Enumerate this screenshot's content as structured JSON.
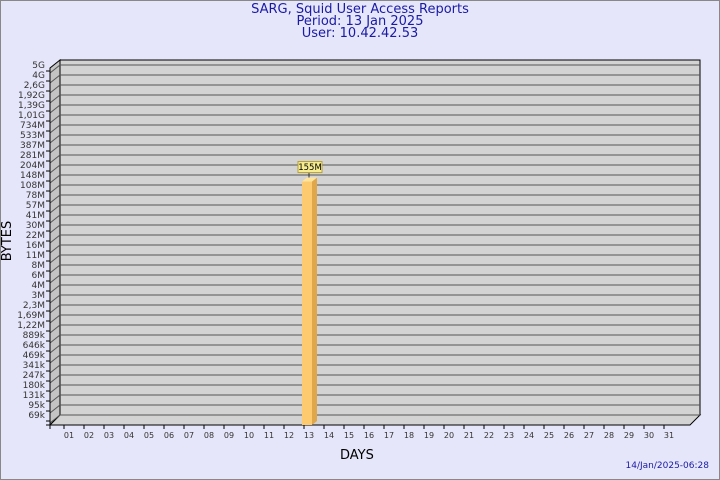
{
  "chart_data": {
    "type": "bar",
    "title": "SARG, Squid User Access Reports",
    "subtitle": [
      "Period: 13 Jan 2025",
      "User: 10.42.42.53"
    ],
    "xlabel": "DAYS",
    "ylabel": "BYTES",
    "y_scale": "log",
    "y_tick_labels": [
      "5G",
      "4G",
      "2,6G",
      "1,92G",
      "1,39G",
      "1,01G",
      "734M",
      "533M",
      "387M",
      "281M",
      "204M",
      "148M",
      "108M",
      "78M",
      "57M",
      "41M",
      "30M",
      "22M",
      "16M",
      "11M",
      "8M",
      "6M",
      "4M",
      "3M",
      "2,3M",
      "1,69M",
      "1,22M",
      "889k",
      "646k",
      "469k",
      "341k",
      "247k",
      "180k",
      "131k",
      "95k",
      "69k"
    ],
    "categories": [
      "01",
      "02",
      "03",
      "04",
      "05",
      "06",
      "07",
      "08",
      "09",
      "10",
      "11",
      "12",
      "13",
      "14",
      "15",
      "16",
      "17",
      "18",
      "19",
      "20",
      "21",
      "22",
      "23",
      "24",
      "25",
      "26",
      "27",
      "28",
      "29",
      "30",
      "31"
    ],
    "series": [
      {
        "values": {
          "13": "155M"
        }
      }
    ],
    "data_labels": {
      "13": "155M"
    },
    "grid": true,
    "bar_color": "#f4b552",
    "footer": "14/Jan/2025-06:28"
  }
}
